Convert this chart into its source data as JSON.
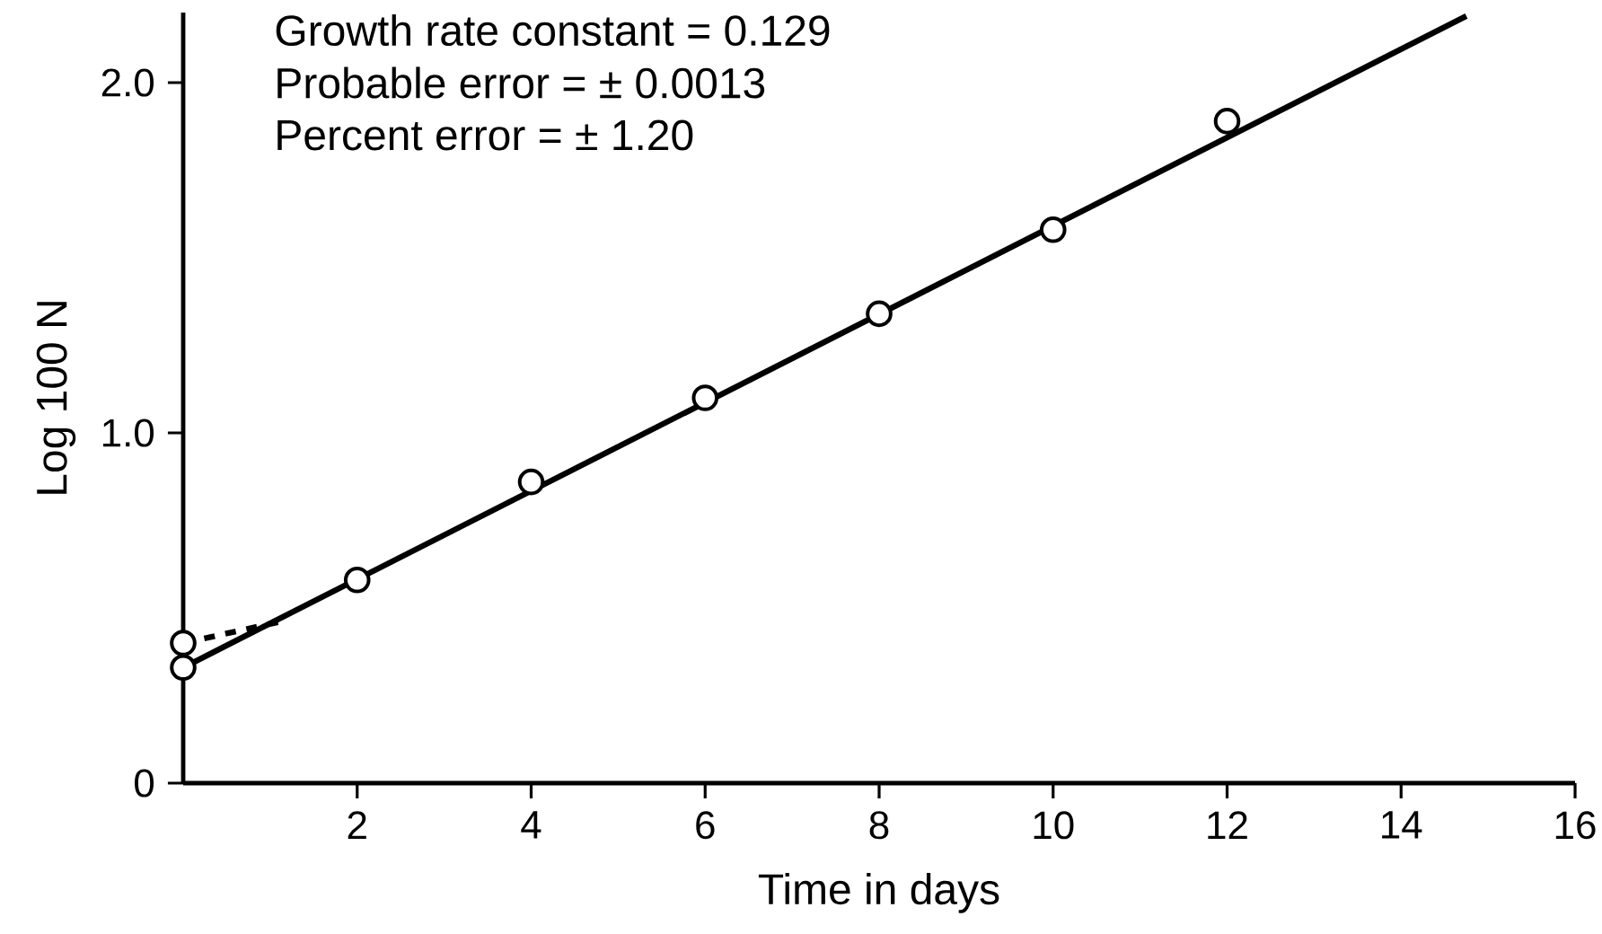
{
  "chart_data": {
    "type": "scatter",
    "xlabel": "Time in days",
    "ylabel": "Log 100 N",
    "annotations": [
      "Growth rate constant = 0.129",
      "Probable error = ± 0.0013",
      "Percent error = ± 1.20"
    ],
    "xlim": [
      0,
      16
    ],
    "ylim": [
      0,
      2.2
    ],
    "xticks": [
      2,
      4,
      6,
      8,
      10,
      12,
      14,
      16
    ],
    "yticks": [
      0,
      {
        "value": 1,
        "label": "1.0"
      },
      {
        "value": 2,
        "label": "2.0"
      }
    ],
    "marker": "circle",
    "series": [
      {
        "type": "line",
        "color": "#000000",
        "x": [
          0,
          14.75
        ],
        "values": [
          0.33,
          2.19
        ],
        "line_style": "solid",
        "marker": "none"
      },
      {
        "type": "line",
        "color": "#000000",
        "x": [
          0,
          1.1
        ],
        "values": [
          0.4,
          0.46
        ],
        "line_style": "dashed",
        "marker": "none"
      },
      {
        "color": "#000000",
        "x": [
          0,
          0,
          2,
          4,
          6,
          8,
          10,
          12
        ],
        "values": [
          0.4,
          0.33,
          0.58,
          0.86,
          1.1,
          1.34,
          1.58,
          1.89
        ]
      }
    ]
  }
}
